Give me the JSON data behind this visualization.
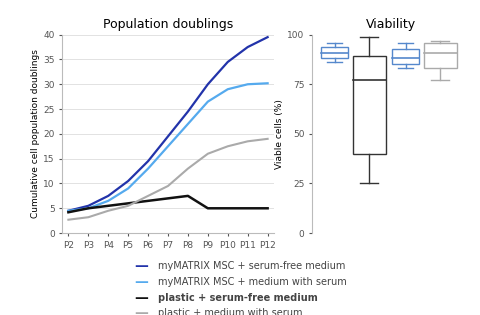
{
  "title_left": "Population doublings",
  "title_right": "Viability",
  "ylabel_left": "Cumulative cell population doublings",
  "ylabel_right": "Viable cells (%)",
  "x_labels": [
    "P2",
    "P3",
    "P4",
    "P5",
    "P6",
    "P7",
    "P8",
    "P9",
    "P10",
    "P11",
    "P12"
  ],
  "line_dark_blue": [
    4.5,
    5.5,
    7.5,
    10.5,
    14.5,
    19.5,
    24.5,
    30.0,
    34.5,
    37.5,
    39.5
  ],
  "line_light_blue": [
    4.5,
    5.0,
    6.5,
    9.0,
    13.0,
    17.5,
    22.0,
    26.5,
    29.0,
    30.0,
    30.2
  ],
  "line_black": [
    4.2,
    5.0,
    5.5,
    6.0,
    6.5,
    7.0,
    7.5,
    5.0,
    5.0,
    5.0,
    5.0
  ],
  "line_gray": [
    2.7,
    3.2,
    4.5,
    5.5,
    7.5,
    9.5,
    13.0,
    16.0,
    17.5,
    18.5,
    19.0
  ],
  "color_dark_blue": "#2233aa",
  "color_light_blue": "#55aaee",
  "color_black": "#111111",
  "color_gray": "#aaaaaa",
  "ylim_left": [
    0,
    40
  ],
  "yticks_left": [
    0,
    5,
    10,
    15,
    20,
    25,
    30,
    35,
    40
  ],
  "box1": {
    "q1": 88,
    "median": 91,
    "q3": 94,
    "whisker_low": 86,
    "whisker_high": 96,
    "color": "#5588cc"
  },
  "box2": {
    "q1": 40,
    "median": 77,
    "q3": 89,
    "whisker_low": 25,
    "whisker_high": 99,
    "color": "#333333"
  },
  "box3": {
    "q1": 85,
    "median": 88,
    "q3": 93,
    "whisker_low": 83,
    "whisker_high": 96,
    "color": "#5588cc"
  },
  "box4": {
    "q1": 83,
    "median": 91,
    "q3": 96,
    "whisker_low": 77,
    "whisker_high": 97,
    "color": "#aaaaaa"
  },
  "ylim_right": [
    0,
    100
  ],
  "yticks_right": [
    0,
    25,
    50,
    75,
    100
  ],
  "legend_labels": [
    "myMATRIX MSC + serum-free medium",
    "myMATRIX MSC + medium with serum",
    "plastic + serum-free medium",
    "plastic + medium with serum"
  ],
  "legend_colors": [
    "#2233aa",
    "#55aaee",
    "#111111",
    "#aaaaaa"
  ],
  "legend_bold": [
    false,
    false,
    true,
    false
  ]
}
